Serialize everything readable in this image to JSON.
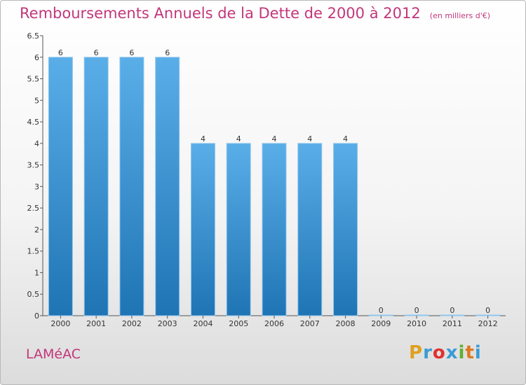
{
  "title": "Remboursements Annuels de la Dette de 2000 à 2012",
  "unit": "(en milliers d'€)",
  "commune": "LAMéAC",
  "brand": {
    "letters": [
      "P",
      "r",
      "o",
      "x",
      "i",
      "t",
      "i"
    ],
    "colors": [
      "#e0a020",
      "#3a9bd5",
      "#e03030",
      "#3a9bd5",
      "#60b030",
      "#e07820",
      "#3a9bd5"
    ]
  },
  "colors": {
    "title": "#c3367a",
    "bar_light": "#5aaee8",
    "bar_dark": "#1f74b4"
  },
  "chart_data": {
    "type": "bar",
    "title": "Remboursements Annuels de la Dette de 2000 à 2012",
    "categories": [
      "2000",
      "2001",
      "2002",
      "2003",
      "2004",
      "2005",
      "2006",
      "2007",
      "2008",
      "2009",
      "2010",
      "2011",
      "2012"
    ],
    "values": [
      6,
      6,
      6,
      6,
      4,
      4,
      4,
      4,
      4,
      0,
      0,
      0,
      0
    ],
    "value_labels": [
      "6",
      "6",
      "6",
      "6",
      "4",
      "4",
      "4",
      "4",
      "4",
      "0",
      "0",
      "0",
      "0"
    ],
    "ylim": [
      0,
      6.5
    ],
    "yticks": [
      "0",
      "0.5",
      "1",
      "1.5",
      "2",
      "2.5",
      "3",
      "3.5",
      "4",
      "4.5",
      "5",
      "5.5",
      "6",
      "6.5"
    ],
    "grid": false,
    "legend": "none"
  }
}
